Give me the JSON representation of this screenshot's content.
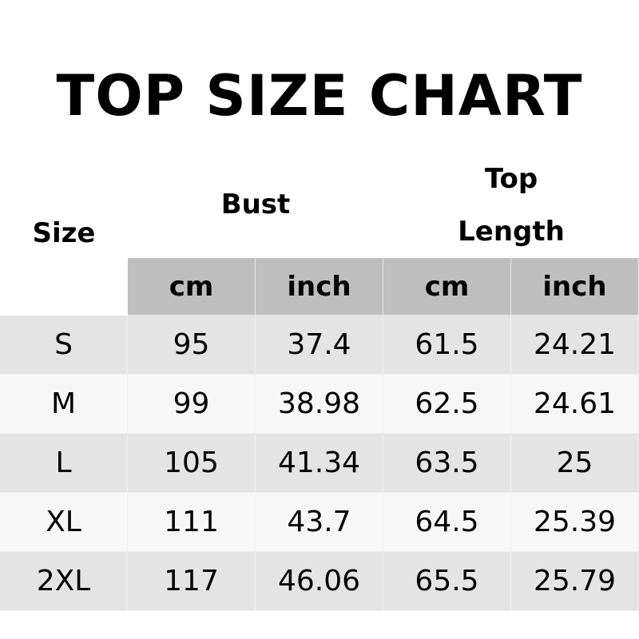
{
  "title": "TOP SIZE CHART",
  "headers": {
    "size": "Size",
    "bust": "Bust",
    "top_length_1": "Top",
    "top_length_2": "Length"
  },
  "units": [
    "cm",
    "inch",
    "cm",
    "inch"
  ],
  "rows": [
    [
      "S",
      "95",
      "37.4",
      "61.5",
      "24.21"
    ],
    [
      "M",
      "99",
      "38.98",
      "62.5",
      "24.61"
    ],
    [
      "L",
      "105",
      "41.34",
      "63.5",
      "25"
    ],
    [
      "XL",
      "111",
      "43.7",
      "64.5",
      "25.39"
    ],
    [
      "2XL",
      "117",
      "46.06",
      "65.5",
      "25.79"
    ]
  ],
  "colors": {
    "header_bg": "#bebebe",
    "row_dark": "#e4e4e4",
    "row_light": "#f7f7f7"
  }
}
